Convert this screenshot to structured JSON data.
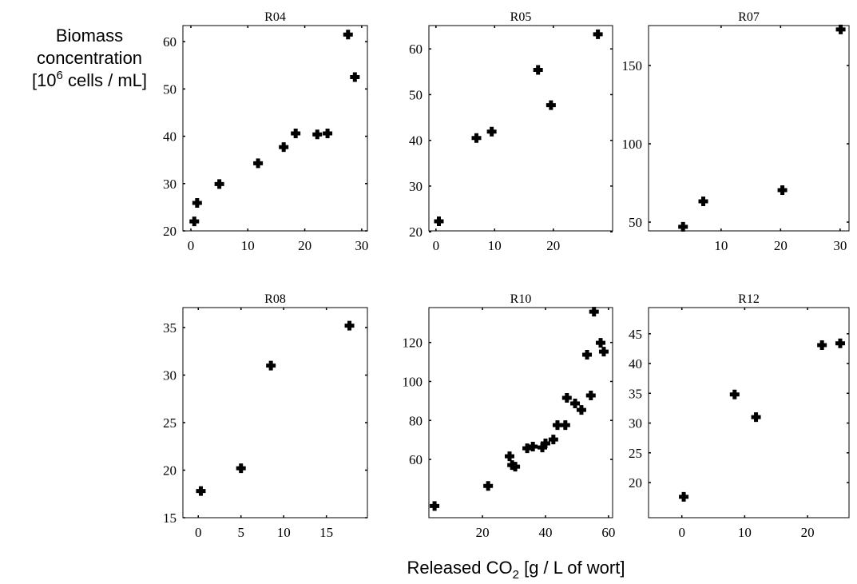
{
  "ylabel": [
    "Biomass",
    "concentration",
    "[10",
    "6",
    " cells / mL]"
  ],
  "xlabel": [
    "Released CO",
    "2",
    " [g / L of wort]"
  ],
  "chart_data": [
    {
      "type": "scatter",
      "title": "R04",
      "color": "#000000",
      "x": [
        0.6,
        1.1,
        5.0,
        11.8,
        16.3,
        18.4,
        22.2,
        24.0,
        27.6,
        28.8
      ],
      "values": [
        22.0,
        25.9,
        29.9,
        34.3,
        37.7,
        40.6,
        40.4,
        40.6,
        61.5,
        52.5
      ],
      "xlim": [
        -1.4,
        31
      ],
      "xticks": [
        0,
        10,
        20,
        30
      ],
      "ylim": [
        20,
        63.4
      ],
      "yticks": [
        20,
        30,
        40,
        50,
        60
      ]
    },
    {
      "type": "scatter",
      "title": "R05",
      "color": "#000000",
      "x": [
        0.5,
        6.9,
        9.5,
        17.4,
        19.6,
        27.6
      ],
      "values": [
        22.3,
        40.5,
        41.9,
        55.4,
        47.7,
        63.2
      ],
      "xlim": [
        -1.2,
        30.1
      ],
      "xticks": [
        0,
        10,
        20
      ],
      "ylim": [
        20.2,
        65.1
      ],
      "yticks": [
        20,
        30,
        40,
        50,
        60
      ]
    },
    {
      "type": "scatter",
      "title": "R07",
      "color": "#000000",
      "x": [
        3.6,
        7.0,
        20.3,
        30.1
      ],
      "values": [
        47,
        63.3,
        70.4,
        173
      ],
      "xlim": [
        -2.2,
        31.5
      ],
      "xticks": [
        10,
        20,
        30
      ],
      "ylim": [
        44.4,
        175.5
      ],
      "yticks": [
        50,
        100,
        150
      ]
    },
    {
      "type": "scatter",
      "title": "R08",
      "color": "#000000",
      "x": [
        0.3,
        5.0,
        8.5,
        17.7
      ],
      "values": [
        17.8,
        20.2,
        31.0,
        35.2
      ],
      "xlim": [
        -1.8,
        19.8
      ],
      "xticks": [
        0,
        5,
        10,
        15
      ],
      "ylim": [
        15,
        37.1
      ],
      "yticks": [
        15,
        20,
        25,
        30,
        35
      ]
    },
    {
      "type": "scatter",
      "title": "R10",
      "color": "#000000",
      "x": [
        4.8,
        21.8,
        29.4,
        28.6,
        30.4,
        34.2,
        36.0,
        39.0,
        40.0,
        42.5,
        43.8,
        46.3,
        46.8,
        49.4,
        51.4,
        54.4,
        53.2,
        55.4,
        57.5,
        58.5
      ],
      "values": [
        36.1,
        46.4,
        57.1,
        61.6,
        56.3,
        65.7,
        66.6,
        66.1,
        68.2,
        70.2,
        77.6,
        77.6,
        91.6,
        88.7,
        85.4,
        92.8,
        113.7,
        135.8,
        119.8,
        115.3
      ],
      "xlim": [
        3.0,
        61.3
      ],
      "xticks": [
        20,
        40,
        60
      ],
      "ylim": [
        30.1,
        137.9
      ],
      "yticks": [
        60,
        80,
        100,
        120
      ]
    },
    {
      "type": "scatter",
      "title": "R12",
      "color": "#000000",
      "x": [
        0.3,
        8.4,
        11.8,
        22.3,
        25.2
      ],
      "values": [
        17.6,
        34.8,
        31.0,
        43.1,
        43.4
      ],
      "xlim": [
        -5.3,
        26.6
      ],
      "xticks": [
        0,
        10,
        20
      ],
      "ylim": [
        14.1,
        49.4
      ],
      "yticks": [
        20,
        25,
        30,
        35,
        40,
        45
      ]
    }
  ]
}
